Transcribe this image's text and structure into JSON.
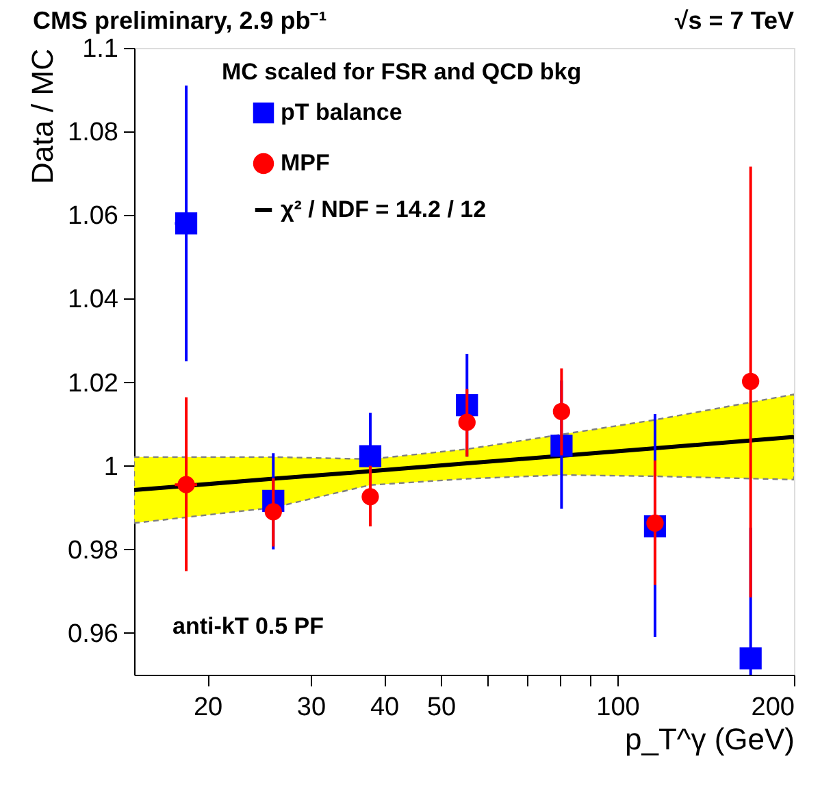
{
  "chart_data": {
    "type": "scatter",
    "title": "CMS preliminary, 2.9 pb⁻¹",
    "xlabel": "p_T^γ (GeV)",
    "ylabel": "Data / MC",
    "legend_title": "MC scaled for FSR and QCD bkg",
    "annotations": [
      "√s = 7 TeV",
      "anti-kT 0.5 PF"
    ],
    "x": [
      18.4,
      25.9,
      37.9,
      55.4,
      80.3,
      115.9,
      168.7
    ],
    "series": [
      {
        "name": "pT balance",
        "color": "#0000ff",
        "marker": "square",
        "values": [
          1.058,
          0.9916,
          1.0023,
          1.0145,
          1.0048,
          0.9855,
          0.9539
        ],
        "errors": [
          [
            1.025,
            1.091
          ],
          [
            0.98,
            1.003
          ],
          [
            0.9945,
            1.0127
          ],
          [
            1.0022,
            1.0268
          ],
          [
            0.9897,
            1.0204
          ],
          [
            0.959,
            1.0124
          ],
          [
            0.95,
            0.9852
          ]
        ],
        "xerrors": [
          [
            17.6,
            19.2
          ],
          null,
          null,
          null,
          null,
          null,
          null
        ]
      },
      {
        "name": "MPF",
        "color": "#ff0000",
        "marker": "circle",
        "values": [
          0.9955,
          0.989,
          0.9926,
          1.0104,
          1.013,
          0.9863,
          1.0202
        ],
        "errors": [
          [
            0.9748,
            1.0164
          ],
          [
            0.9807,
            0.997
          ],
          [
            0.9855,
            1.0
          ],
          [
            1.0022,
            1.0184
          ],
          [
            1.0025,
            1.0233
          ],
          [
            0.9715,
            1.0013
          ],
          [
            0.9685,
            1.0716
          ]
        ],
        "xerrors": [
          [
            17.6,
            19.2
          ],
          null,
          null,
          null,
          null,
          null,
          null
        ]
      },
      {
        "name": "χ² / NDF = 14.2 / 12",
        "color": "#000000",
        "type": "line",
        "marker": "none",
        "line_style": "solid",
        "x": [
          15,
          25.9,
          37.9,
          55.4,
          80.3,
          115.9,
          200
        ],
        "values": [
          0.9942,
          0.9969,
          0.9987,
          1.0006,
          1.0024,
          1.0042,
          1.0069
        ],
        "lower": [
          0.9863,
          0.99,
          0.9954,
          0.9969,
          0.9978,
          0.9975,
          0.9967
        ],
        "upper": [
          1.0021,
          1.0021,
          1.0016,
          1.004,
          1.0075,
          1.011,
          1.0171
        ]
      }
    ],
    "log": "x",
    "xlim": [
      15,
      200
    ],
    "ylim": [
      0.95,
      1.1
    ],
    "xticks": [
      20,
      30,
      40,
      50,
      {
        "value": 60,
        "label": null
      },
      {
        "value": 70,
        "label": null
      },
      {
        "value": 80,
        "label": null
      },
      {
        "value": 90,
        "label": null
      },
      100,
      200
    ],
    "yticks": [
      0.96,
      0.98,
      1,
      1.02,
      1.04,
      1.06,
      1.08,
      1.1
    ],
    "grid": false,
    "legend": "top left"
  }
}
